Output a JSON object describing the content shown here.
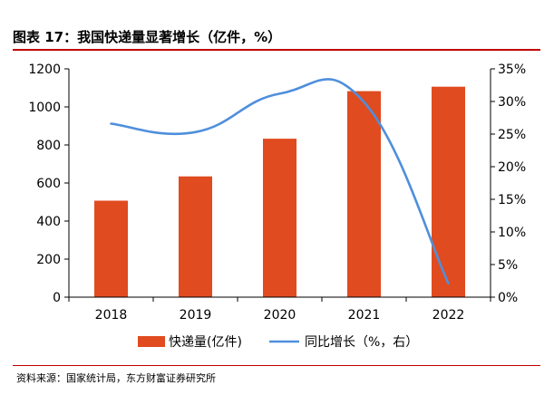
{
  "header": {
    "title": "图表 17：我国快递量显著增长（亿件，%）"
  },
  "footer": {
    "source": "资料来源：国家统计局，东方财富证券研究所"
  },
  "colors": {
    "bar": "#e04b1f",
    "line": "#4f8fdc",
    "rule": "#c00000",
    "axis": "#000000"
  },
  "chart_data": {
    "type": "bar",
    "categories": [
      "2018",
      "2019",
      "2020",
      "2021",
      "2022"
    ],
    "series": [
      {
        "name": "快递量(亿件)",
        "type": "bar",
        "axis": "left",
        "values": [
          507,
          635,
          833,
          1083,
          1106
        ]
      },
      {
        "name": "同比增长（%，右）",
        "type": "line",
        "axis": "right",
        "values": [
          26.6,
          25.3,
          31.2,
          29.9,
          2.1
        ]
      }
    ],
    "y_left": {
      "min": 0,
      "max": 1200,
      "ticks": [
        "0",
        "200",
        "400",
        "600",
        "800",
        "1000",
        "1200"
      ]
    },
    "y_right": {
      "min": 0,
      "max": 35,
      "ticks": [
        "0%",
        "5%",
        "10%",
        "15%",
        "20%",
        "25%",
        "30%",
        "35%"
      ]
    },
    "legend": {
      "placement": "bottom"
    },
    "grid": false
  }
}
